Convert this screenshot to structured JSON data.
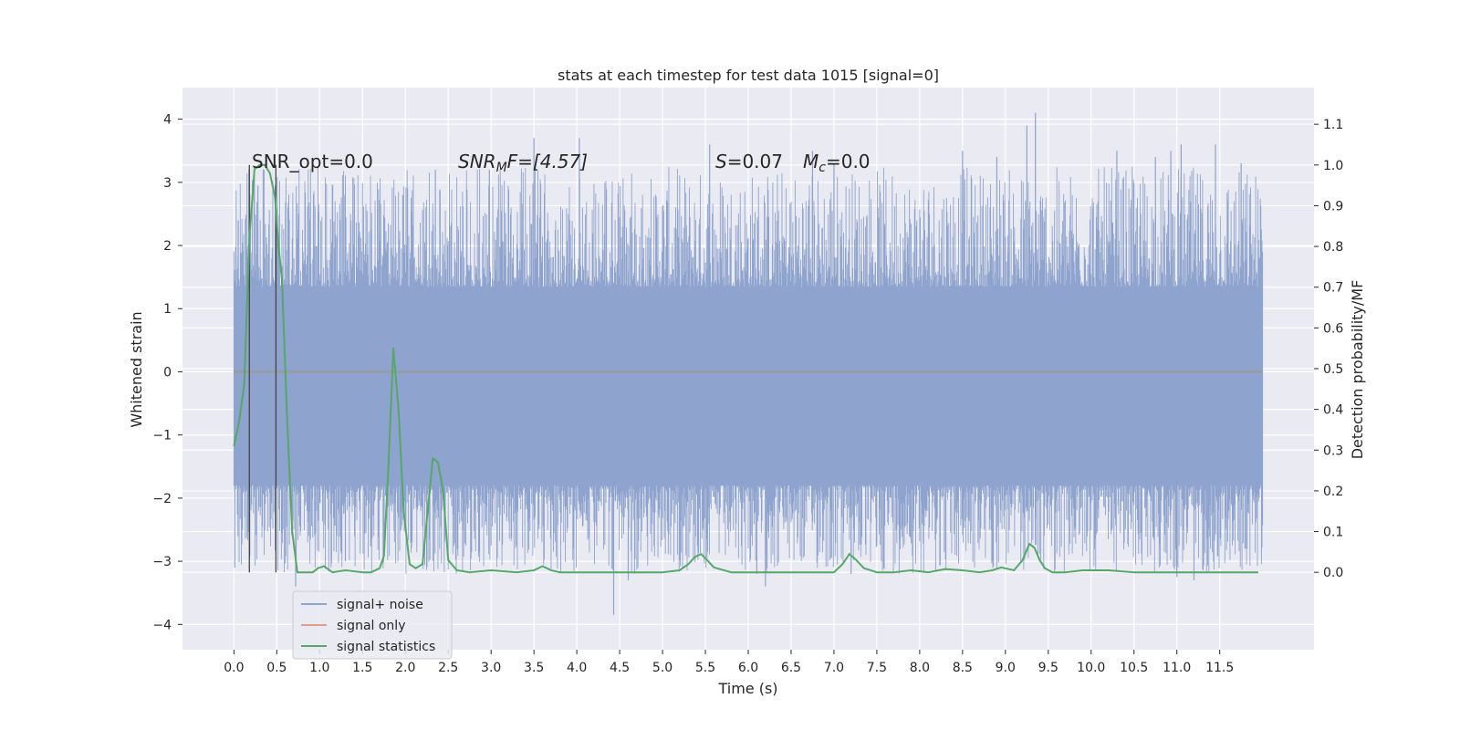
{
  "chart_data": {
    "type": "line",
    "title": "stats at each timestep for test data 1015 [signal=0]",
    "xlabel": "Time (s)",
    "ylabel_left": "Whitened strain",
    "ylabel_right": "Detection probability/MF",
    "xlim": [
      -0.6,
      12.6
    ],
    "ylim_left": [
      -4.4,
      4.5
    ],
    "ylim_right": [
      -0.19,
      1.19
    ],
    "xticks": [
      0.0,
      0.5,
      1.0,
      1.5,
      2.0,
      2.5,
      3.0,
      3.5,
      4.0,
      4.5,
      5.0,
      5.5,
      6.0,
      6.5,
      7.0,
      7.5,
      8.0,
      8.5,
      9.0,
      9.5,
      10.0,
      10.5,
      11.0,
      11.5
    ],
    "xtick_labels": [
      "0.0",
      "0.5",
      "1.0",
      "1.5",
      "2.0",
      "2.5",
      "3.0",
      "3.5",
      "4.0",
      "4.5",
      "5.0",
      "5.5",
      "6.0",
      "6.5",
      "7.0",
      "7.5",
      "8.0",
      "8.5",
      "9.0",
      "9.5",
      "10.0",
      "10.5",
      "11.0",
      "11.5"
    ],
    "yticks_left": [
      4,
      3,
      2,
      1,
      0,
      -1,
      -2,
      -3,
      -4
    ],
    "ytick_labels_left": [
      "4",
      "3",
      "2",
      "1",
      "0",
      "−1",
      "−2",
      "−3",
      "−4"
    ],
    "yticks_right": [
      1.1,
      1.0,
      0.9,
      0.8,
      0.7,
      0.6,
      0.5,
      0.4,
      0.3,
      0.2,
      0.1,
      0.0
    ],
    "ytick_labels_right": [
      "1.1",
      "1.0",
      "0.9",
      "0.8",
      "0.7",
      "0.6",
      "0.5",
      "0.4",
      "0.3",
      "0.2",
      "0.1",
      "0.0"
    ],
    "grid": true,
    "legend_placement": "lower-left",
    "annotations": {
      "snr_opt": "SNR_opt=0.0",
      "snr_mf_base": "SNR",
      "snr_mf_sub": "M",
      "snr_mf_rest": "F=[4.57]",
      "s_label": "S",
      "s_value": "=0.07",
      "mc_base": "M",
      "mc_sub": "c",
      "mc_value": "=0.0"
    },
    "vertical_markers_x": [
      0.18,
      0.49
    ],
    "noise_series": {
      "name": "signal+ noise",
      "color": "#8ea3cd",
      "x_range": [
        0.0,
        12.0
      ],
      "core_band": [
        -1.8,
        1.35
      ],
      "notable_peaks": [
        {
          "x": 0.05,
          "y": 2.4
        },
        {
          "x": 0.28,
          "y": 2.95
        },
        {
          "x": 0.35,
          "y": 3.2
        },
        {
          "x": 0.63,
          "y": 2.6
        },
        {
          "x": 1.97,
          "y": 2.8
        },
        {
          "x": 2.35,
          "y": 3.2
        },
        {
          "x": 2.98,
          "y": 3.2
        },
        {
          "x": 3.5,
          "y": 3.7
        },
        {
          "x": 4.03,
          "y": 3.7
        },
        {
          "x": 5.55,
          "y": 3.6
        },
        {
          "x": 6.75,
          "y": 3.5
        },
        {
          "x": 7.0,
          "y": 3.3
        },
        {
          "x": 8.5,
          "y": 3.5
        },
        {
          "x": 8.9,
          "y": 3.4
        },
        {
          "x": 9.25,
          "y": 3.9
        },
        {
          "x": 9.35,
          "y": 4.1
        },
        {
          "x": 10.3,
          "y": 3.5
        },
        {
          "x": 10.75,
          "y": 3.4
        },
        {
          "x": 10.93,
          "y": 3.5
        },
        {
          "x": 11.05,
          "y": 3.6
        },
        {
          "x": 11.45,
          "y": 3.6
        },
        {
          "x": 11.75,
          "y": 3.3
        }
      ],
      "notable_troughs": [
        {
          "x": 0.01,
          "y": -3.1
        },
        {
          "x": 0.72,
          "y": -3.4
        },
        {
          "x": 1.3,
          "y": -3.0
        },
        {
          "x": 4.43,
          "y": -3.85
        },
        {
          "x": 4.6,
          "y": -3.3
        },
        {
          "x": 6.2,
          "y": -3.4
        },
        {
          "x": 6.1,
          "y": -3.2
        },
        {
          "x": 7.2,
          "y": -3.2
        },
        {
          "x": 11.0,
          "y": -3.25
        },
        {
          "x": 11.2,
          "y": -3.3
        }
      ]
    },
    "signal_only": {
      "name": "signal only",
      "color": "#dd9e8a",
      "y": 0.0
    },
    "statistics_series": {
      "name": "signal statistics",
      "color": "#55a868",
      "x": [
        0.0,
        0.06,
        0.12,
        0.18,
        0.24,
        0.3,
        0.36,
        0.42,
        0.48,
        0.52,
        0.56,
        0.62,
        0.68,
        0.74,
        0.8,
        0.86,
        0.92,
        0.98,
        1.05,
        1.15,
        1.3,
        1.5,
        1.6,
        1.7,
        1.75,
        1.8,
        1.86,
        1.92,
        1.98,
        2.05,
        2.12,
        2.2,
        2.26,
        2.32,
        2.38,
        2.44,
        2.5,
        2.6,
        2.75,
        3.0,
        3.3,
        3.5,
        3.6,
        3.7,
        3.8,
        4.0,
        4.5,
        5.0,
        5.2,
        5.3,
        5.38,
        5.45,
        5.52,
        5.6,
        5.8,
        6.2,
        6.6,
        7.0,
        7.1,
        7.18,
        7.26,
        7.35,
        7.5,
        7.7,
        7.9,
        8.1,
        8.3,
        8.5,
        8.7,
        8.85,
        8.95,
        9.1,
        9.2,
        9.28,
        9.34,
        9.4,
        9.46,
        9.55,
        9.7,
        9.9,
        10.2,
        10.5,
        10.8,
        11.2,
        11.5,
        11.8,
        11.95
      ],
      "y": [
        0.31,
        0.37,
        0.46,
        0.82,
        0.99,
        1.0,
        1.0,
        0.98,
        0.92,
        0.8,
        0.72,
        0.38,
        0.1,
        0.0,
        0.0,
        0.0,
        0.0,
        0.01,
        0.015,
        0.0,
        0.005,
        0.0,
        0.0,
        0.01,
        0.04,
        0.25,
        0.55,
        0.4,
        0.15,
        0.02,
        0.01,
        0.02,
        0.15,
        0.28,
        0.27,
        0.2,
        0.03,
        0.005,
        0.0,
        0.005,
        0.0,
        0.005,
        0.015,
        0.005,
        0.0,
        0.0,
        0.0,
        0.0,
        0.005,
        0.02,
        0.038,
        0.045,
        0.03,
        0.012,
        0.0,
        0.0,
        0.0,
        0.0,
        0.02,
        0.045,
        0.03,
        0.01,
        0.0,
        0.0,
        0.005,
        0.0,
        0.008,
        0.005,
        0.0,
        0.005,
        0.012,
        0.005,
        0.03,
        0.07,
        0.06,
        0.03,
        0.01,
        0.0,
        0.0,
        0.005,
        0.005,
        0.0,
        0.0,
        0.0,
        0.0,
        0.0,
        0.0
      ]
    }
  }
}
